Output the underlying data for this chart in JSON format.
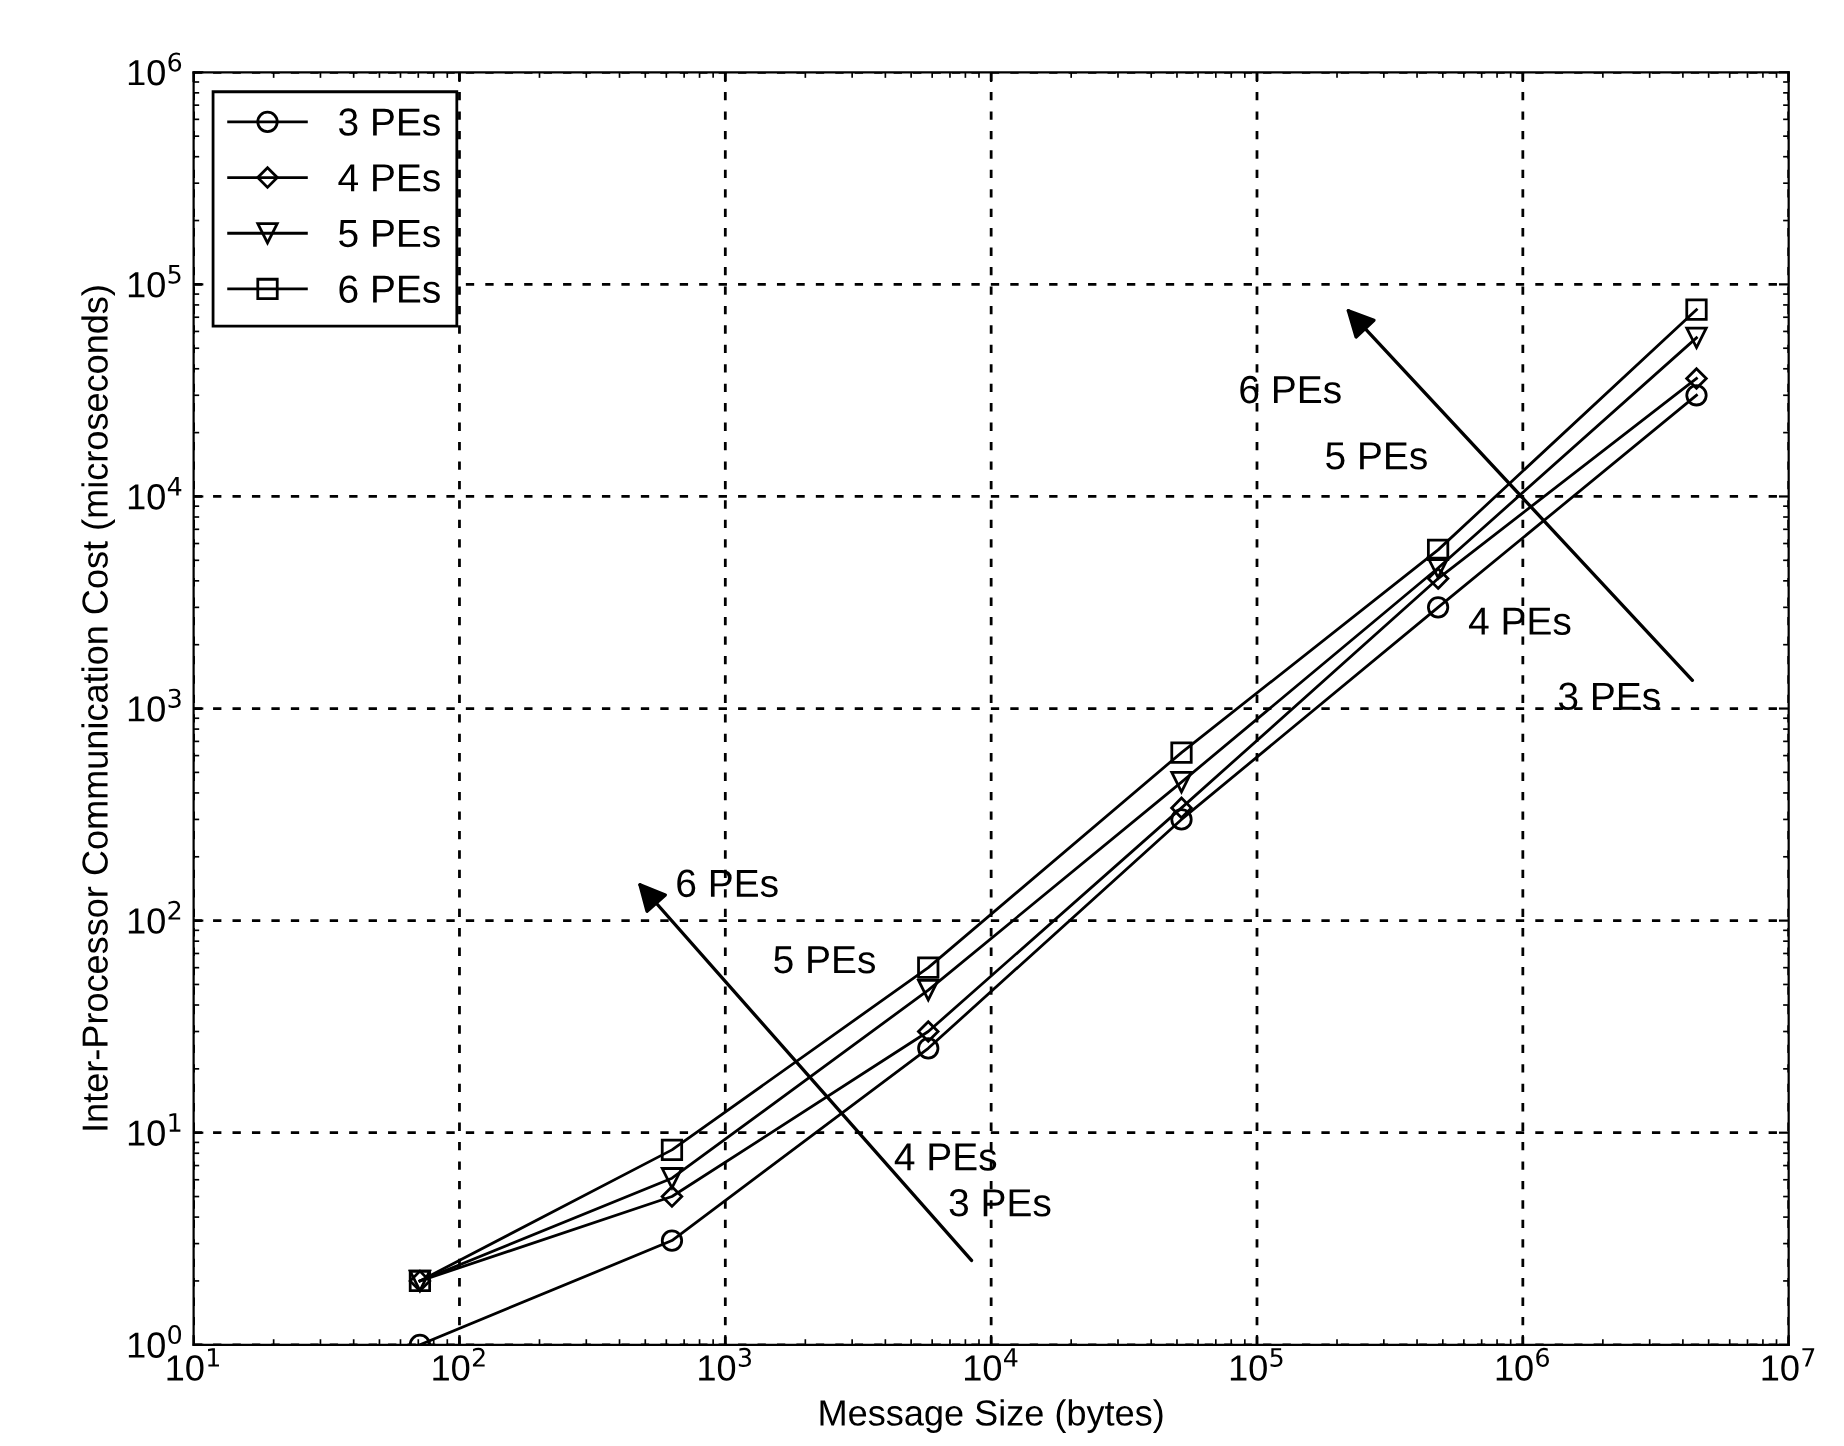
{
  "chart_data": {
    "type": "line",
    "xlabel": "Message Size (bytes)",
    "ylabel": "Inter-Processor Communication Cost (microseconds)",
    "x": [
      71,
      630,
      5800,
      52000,
      480000,
      4500000
    ],
    "series": [
      {
        "name": "3 PEs",
        "color": "#000000",
        "marker": "circle",
        "values": [
          1,
          3.1,
          25,
          300,
          3000,
          30000
        ]
      },
      {
        "name": "4 PEs",
        "color": "#000000",
        "marker": "diamond",
        "values": [
          2,
          5,
          30,
          340,
          4100,
          36000
        ]
      },
      {
        "name": "5 PEs",
        "color": "#000000",
        "marker": "triangle",
        "values": [
          2,
          6.1,
          47,
          450,
          4600,
          56000
        ]
      },
      {
        "name": "6 PEs",
        "color": "#000000",
        "marker": "square",
        "values": [
          2,
          8.3,
          60,
          620,
          5600,
          76000
        ]
      }
    ],
    "annotations": [
      "6 PEs",
      "5 PEs",
      "4 PEs",
      "3 PEs",
      "6 PEs",
      "5 PEs",
      "4 PEs",
      "3 PEs"
    ],
    "log": "xy",
    "xlim": [
      10,
      10000000
    ],
    "ylim": [
      1,
      1000000
    ],
    "xticks": [
      {
        "value": 10,
        "label": "10$^{1}$"
      },
      {
        "value": 100,
        "label": "10$^{2}$"
      },
      {
        "value": 1000,
        "label": "10$^{3}$"
      },
      {
        "value": 10000,
        "label": "10$^{4}$"
      },
      {
        "value": 100000,
        "label": "10$^{5}$"
      },
      {
        "value": 1000000,
        "label": "10$^{6}$"
      },
      {
        "value": 10000000,
        "label": "10$^{7}$"
      }
    ],
    "yticks": [
      {
        "value": 1,
        "label": "10$^{0}$"
      },
      {
        "value": 10,
        "label": "10$^{1}$"
      },
      {
        "value": 100,
        "label": "10$^{2}$"
      },
      {
        "value": 1000,
        "label": "10$^{3}$"
      },
      {
        "value": 10000,
        "label": "10$^{4}$"
      },
      {
        "value": 100000,
        "label": "10$^{5}$"
      },
      {
        "value": 1000000,
        "label": "10$^{6}$"
      }
    ],
    "grid": true,
    "legend": "top left",
    "line_style": "solid"
  }
}
